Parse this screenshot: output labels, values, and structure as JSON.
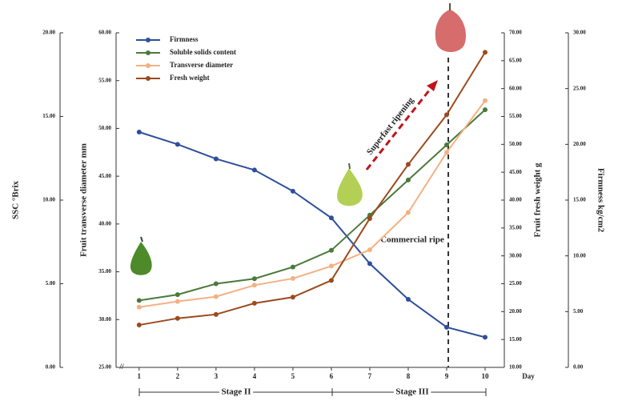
{
  "chart_data": {
    "type": "line",
    "x": [
      1,
      2,
      3,
      4,
      5,
      6,
      7,
      8,
      9,
      10
    ],
    "xlim": [
      0.4,
      10.5
    ],
    "xticks": [
      1,
      2,
      3,
      4,
      5,
      6,
      7,
      8,
      9,
      10
    ],
    "x_label": "Day",
    "axes": [
      {
        "label": "SSC °Brix",
        "lim": [
          0,
          20
        ],
        "ticks": [
          {
            "value": 0,
            "label": "0.00"
          },
          {
            "value": 5,
            "label": "5.00"
          },
          {
            "value": 10,
            "label": "10.00"
          },
          {
            "value": 15,
            "label": "15.00"
          },
          {
            "value": 20,
            "label": "20.00"
          }
        ]
      },
      {
        "label": "Fruit transverse diameter  mm",
        "lim": [
          25,
          60
        ],
        "ticks": [
          {
            "value": 25,
            "label": "25.00"
          },
          {
            "value": 30,
            "label": "30.00"
          },
          {
            "value": 35,
            "label": "35.00"
          },
          {
            "value": 40,
            "label": "40.00"
          },
          {
            "value": 45,
            "label": "45.00"
          },
          {
            "value": 50,
            "label": "50.00"
          },
          {
            "value": 55,
            "label": "55.00"
          },
          {
            "value": 60,
            "label": "60.00"
          }
        ]
      },
      {
        "label": "Fruit fresh weight g",
        "lim": [
          10,
          70
        ],
        "ticks": [
          {
            "value": 10,
            "label": "10.00"
          },
          {
            "value": 15,
            "label": "15.00"
          },
          {
            "value": 20,
            "label": "20.00"
          },
          {
            "value": 25,
            "label": "25.00"
          },
          {
            "value": 30,
            "label": "30.00"
          },
          {
            "value": 35,
            "label": "35.00"
          },
          {
            "value": 40,
            "label": "40.00"
          },
          {
            "value": 45,
            "label": "45.00"
          },
          {
            "value": 50,
            "label": "50.00"
          },
          {
            "value": 55,
            "label": "55.00"
          },
          {
            "value": 60,
            "label": "60.00"
          },
          {
            "value": 65,
            "label": "65.00"
          },
          {
            "value": 70,
            "label": "70.00"
          }
        ]
      },
      {
        "label": "Firmness kg/cm2",
        "lim": [
          0,
          30
        ],
        "ticks": [
          {
            "value": 0,
            "label": "0.00"
          },
          {
            "value": 5,
            "label": "5.00"
          },
          {
            "value": 10,
            "label": "10.00"
          },
          {
            "value": 15,
            "label": "15.00"
          },
          {
            "value": 20,
            "label": "20.00"
          },
          {
            "value": 25,
            "label": "25.00"
          },
          {
            "value": 30,
            "label": "30.00"
          }
        ]
      }
    ],
    "series": [
      {
        "name": "Firmness",
        "color": "#2e4f9a",
        "axis": 3,
        "values": [
          21.1,
          20.0,
          18.7,
          17.7,
          15.8,
          13.4,
          9.3,
          6.1,
          3.6,
          2.7
        ]
      },
      {
        "name": "Soluble solids content",
        "color": "#4a7a3a",
        "axis": 0,
        "values": [
          4.0,
          4.35,
          5.0,
          5.3,
          6.0,
          7.0,
          9.1,
          11.2,
          13.3,
          15.4
        ]
      },
      {
        "name": "Transverse diameter",
        "color": "#f4b183",
        "axis": 1,
        "values": [
          31.3,
          31.9,
          32.4,
          33.6,
          34.3,
          35.6,
          37.3,
          41.2,
          47.5,
          52.9
        ]
      },
      {
        "name": "Fresh weight",
        "color": "#9c4a1e",
        "axis": 2,
        "values": [
          17.6,
          18.8,
          19.5,
          21.5,
          22.6,
          25.6,
          36.7,
          46.4,
          55.3,
          66.5
        ]
      }
    ],
    "annotations": {
      "superfast": "Superfast ripening",
      "commercial": "Commercial ripe",
      "stage2": "Stage II",
      "stage3": "Stage III"
    }
  }
}
